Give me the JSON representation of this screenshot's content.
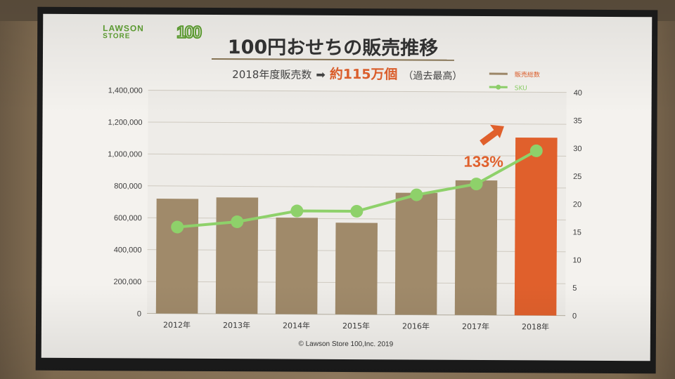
{
  "logo": {
    "line1": "LAWSON",
    "line2": "STORE",
    "number": "100"
  },
  "slide": {
    "title": "100円おせちの販売推移",
    "subtitle_lead": "2018年度販売数",
    "subtitle_arrow": "➡",
    "subtitle_emphasis": "約115万個",
    "subtitle_note": "（過去最高）",
    "copyright": "© Lawson Store 100,Inc. 2019"
  },
  "colors": {
    "bar": "#a08a6a",
    "bar_highlight": "#e0602c",
    "line": "#8ed16a",
    "accent": "#e0602c",
    "grid": "#cfcac0",
    "axis_text": "#3a3a3a"
  },
  "chart_data": {
    "type": "bar",
    "categories": [
      "2012年",
      "2013年",
      "2014年",
      "2015年",
      "2016年",
      "2017年",
      "2018年"
    ],
    "series": [
      {
        "name": "販売総数",
        "type": "bar",
        "axis": "left",
        "values": [
          720000,
          730000,
          605000,
          575000,
          765000,
          845000,
          1115000
        ]
      },
      {
        "name": "SKU",
        "type": "line",
        "axis": "right",
        "values": [
          15.5,
          16.5,
          18.5,
          18.5,
          21.5,
          23.5,
          29.5
        ]
      }
    ],
    "ylim": [
      0,
      1400000
    ],
    "y_ticks": [
      "1,400,000",
      "1,200,000",
      "1,000,000",
      "800,000",
      "600,000",
      "400,000",
      "200,000",
      "0"
    ],
    "y2lim": [
      0,
      40
    ],
    "y2_ticks": [
      "40",
      "35",
      "30",
      "25",
      "20",
      "15",
      "10",
      "5",
      "0"
    ],
    "highlight_index": 6,
    "annotation": "133%",
    "legend": [
      {
        "label": "販売総数",
        "kind": "bar"
      },
      {
        "label": "SKU",
        "kind": "line"
      }
    ],
    "legend_position": "top-right",
    "grid": true
  }
}
